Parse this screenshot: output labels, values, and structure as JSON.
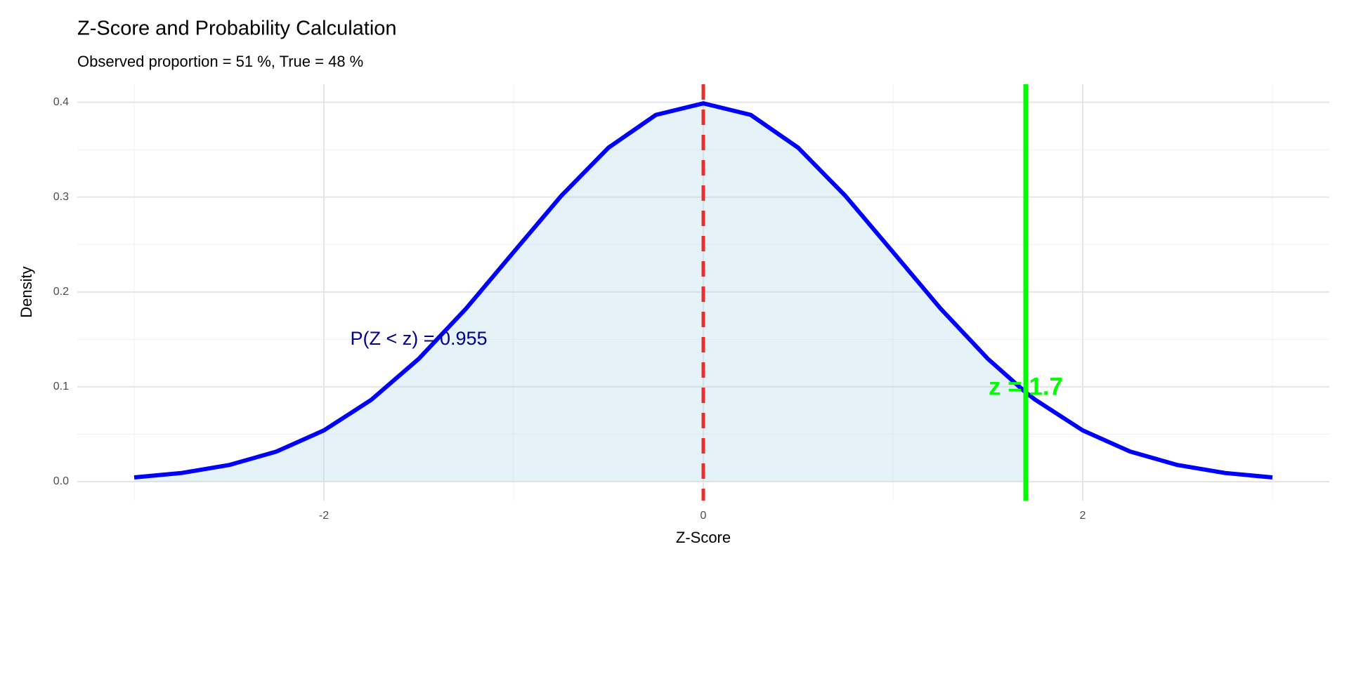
{
  "chart_data": {
    "type": "area-line",
    "title": "Z-Score and Probability Calculation",
    "subtitle": "Observed proportion = 51 %, True = 48 %",
    "x_label": "Z-Score",
    "y_label": "Density",
    "x": [
      -3,
      -2.75,
      -2.5,
      -2.25,
      -2,
      -1.75,
      -1.5,
      -1.25,
      -1,
      -0.75,
      -0.5,
      -0.25,
      0,
      0.25,
      0.5,
      0.75,
      1,
      1.25,
      1.5,
      1.7,
      1.75,
      2,
      2.25,
      2.5,
      2.75,
      3
    ],
    "values": [
      0.0044,
      0.0091,
      0.0175,
      0.0317,
      0.054,
      0.0863,
      0.1295,
      0.1826,
      0.242,
      0.3011,
      0.3521,
      0.3867,
      0.3989,
      0.3867,
      0.3521,
      0.3011,
      0.242,
      0.1826,
      0.1295,
      0.094,
      0.0863,
      0.054,
      0.0317,
      0.0175,
      0.0091,
      0.0044
    ],
    "line_color": "#0000ff",
    "fill_color": "#add8e6",
    "mean_line_x": 0,
    "mean_line_color": "#e8302f",
    "z_value": 1.7,
    "z_line_color": "#00ff00",
    "z_annotation": "z = 1.7",
    "probability_annotation": "P(Z < z) = 0.955",
    "probability_color": "#00008b",
    "xlim": [
      -3.3,
      3.3
    ],
    "ylim": [
      -0.02,
      0.419
    ],
    "xticks": [
      -2,
      0,
      2
    ],
    "yticks": [
      {
        "value": 0,
        "label": "0.0"
      },
      0.1,
      0.2,
      0.3,
      0.4
    ],
    "grid": true
  }
}
